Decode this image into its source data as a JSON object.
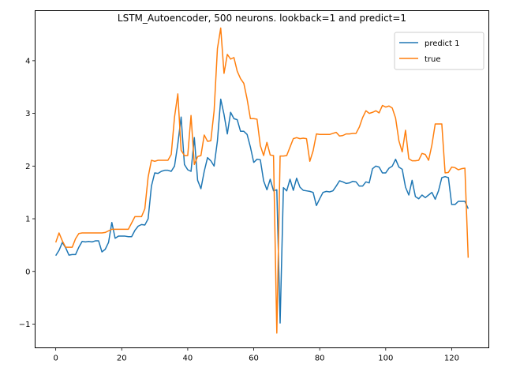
{
  "chart_data": {
    "type": "line",
    "title": "LSTM_Autoencoder, 500 neurons. lookback=1 and predict=1",
    "xlabel": "",
    "ylabel": "",
    "xlim": [
      -6.25,
      131.25
    ],
    "ylim": [
      -1.45,
      4.95
    ],
    "xticks": [
      0,
      20,
      40,
      60,
      80,
      100,
      120
    ],
    "yticks": [
      -1,
      0,
      1,
      2,
      3,
      4
    ],
    "xtick_labels": [
      "0",
      "20",
      "40",
      "60",
      "80",
      "100",
      "120"
    ],
    "ytick_labels": [
      "−1",
      "0",
      "1",
      "2",
      "3",
      "4"
    ],
    "grid": false,
    "legend_position": "top-right",
    "series": [
      {
        "name": "predict 1",
        "color": "#1f77b4",
        "x": [
          0,
          1,
          2,
          3,
          4,
          5,
          6,
          7,
          8,
          9,
          10,
          11,
          12,
          13,
          14,
          15,
          16,
          17,
          18,
          19,
          20,
          21,
          22,
          23,
          24,
          25,
          26,
          27,
          28,
          29,
          30,
          31,
          32,
          33,
          34,
          35,
          36,
          37,
          38,
          39,
          40,
          41,
          42,
          43,
          44,
          45,
          46,
          47,
          48,
          49,
          50,
          51,
          52,
          53,
          54,
          55,
          56,
          57,
          58,
          59,
          60,
          61,
          62,
          63,
          64,
          65,
          66,
          67,
          68,
          69,
          70,
          71,
          72,
          73,
          74,
          75,
          76,
          77,
          78,
          79,
          80,
          81,
          82,
          83,
          84,
          85,
          86,
          87,
          88,
          89,
          90,
          91,
          92,
          93,
          94,
          95,
          96,
          97,
          98,
          99,
          100,
          101,
          102,
          103,
          104,
          105,
          106,
          107,
          108,
          109,
          110,
          111,
          112,
          113,
          114,
          115,
          116,
          117,
          118,
          119,
          120,
          121,
          122,
          123,
          124,
          125
        ],
        "values": [
          0.3,
          0.4,
          0.55,
          0.45,
          0.31,
          0.32,
          0.32,
          0.46,
          0.57,
          0.56,
          0.57,
          0.56,
          0.58,
          0.58,
          0.37,
          0.42,
          0.55,
          0.93,
          0.63,
          0.67,
          0.67,
          0.67,
          0.66,
          0.66,
          0.78,
          0.86,
          0.89,
          0.88,
          1.0,
          1.62,
          1.87,
          1.86,
          1.9,
          1.92,
          1.92,
          1.9,
          2.0,
          2.42,
          2.93,
          2.03,
          1.93,
          1.9,
          2.54,
          1.73,
          1.57,
          1.9,
          2.16,
          2.1,
          2.0,
          2.48,
          3.27,
          2.98,
          2.61,
          3.02,
          2.9,
          2.88,
          2.66,
          2.66,
          2.6,
          2.36,
          2.07,
          2.13,
          2.12,
          1.72,
          1.55,
          1.75,
          1.53,
          1.55,
          -0.98,
          1.59,
          1.53,
          1.75,
          1.54,
          1.77,
          1.6,
          1.54,
          1.53,
          1.52,
          1.5,
          1.25,
          1.38,
          1.5,
          1.52,
          1.51,
          1.53,
          1.62,
          1.72,
          1.7,
          1.67,
          1.68,
          1.71,
          1.7,
          1.62,
          1.62,
          1.7,
          1.68,
          1.95,
          2.0,
          1.98,
          1.87,
          1.87,
          1.96,
          2.0,
          2.13,
          1.98,
          1.94,
          1.6,
          1.45,
          1.73,
          1.42,
          1.38,
          1.45,
          1.4,
          1.45,
          1.5,
          1.37,
          1.53,
          1.78,
          1.8,
          1.78,
          1.27,
          1.27,
          1.33,
          1.33,
          1.33,
          1.19
        ]
      },
      {
        "name": "true",
        "color": "#ff7f0e",
        "x": [
          0,
          1,
          2,
          3,
          4,
          5,
          6,
          7,
          8,
          9,
          10,
          11,
          12,
          13,
          14,
          15,
          16,
          17,
          18,
          19,
          20,
          21,
          22,
          23,
          24,
          25,
          26,
          27,
          28,
          29,
          30,
          31,
          32,
          33,
          34,
          35,
          36,
          37,
          38,
          39,
          40,
          41,
          42,
          43,
          44,
          45,
          46,
          47,
          48,
          49,
          50,
          51,
          52,
          53,
          54,
          55,
          56,
          57,
          58,
          59,
          60,
          61,
          62,
          63,
          64,
          65,
          66,
          67,
          68,
          69,
          70,
          71,
          72,
          73,
          74,
          75,
          76,
          77,
          78,
          79,
          80,
          81,
          82,
          83,
          84,
          85,
          86,
          87,
          88,
          89,
          90,
          91,
          92,
          93,
          94,
          95,
          96,
          97,
          98,
          99,
          100,
          101,
          102,
          103,
          104,
          105,
          106,
          107,
          108,
          109,
          110,
          111,
          112,
          113,
          114,
          115,
          116,
          117,
          118,
          119,
          120,
          121,
          122,
          123,
          124,
          125
        ],
        "values": [
          0.55,
          0.73,
          0.58,
          0.46,
          0.46,
          0.46,
          0.62,
          0.72,
          0.73,
          0.73,
          0.73,
          0.73,
          0.73,
          0.73,
          0.73,
          0.74,
          0.77,
          0.8,
          0.8,
          0.8,
          0.8,
          0.8,
          0.8,
          0.92,
          1.04,
          1.04,
          1.04,
          1.19,
          1.79,
          2.11,
          2.09,
          2.11,
          2.11,
          2.11,
          2.11,
          2.22,
          2.93,
          3.37,
          2.3,
          2.2,
          2.2,
          2.96,
          2.03,
          2.18,
          2.2,
          2.59,
          2.47,
          2.48,
          3.05,
          4.23,
          4.62,
          3.76,
          4.12,
          4.03,
          4.06,
          3.8,
          3.66,
          3.57,
          3.27,
          2.9,
          2.9,
          2.89,
          2.39,
          2.2,
          2.45,
          2.21,
          2.2,
          -1.17,
          2.19,
          2.19,
          2.2,
          2.36,
          2.52,
          2.54,
          2.52,
          2.53,
          2.52,
          2.09,
          2.29,
          2.61,
          2.6,
          2.6,
          2.6,
          2.6,
          2.62,
          2.64,
          2.57,
          2.58,
          2.61,
          2.61,
          2.62,
          2.62,
          2.74,
          2.92,
          3.05,
          3.0,
          3.02,
          3.05,
          3.01,
          3.15,
          3.12,
          3.14,
          3.1,
          2.91,
          2.48,
          2.27,
          2.68,
          2.14,
          2.1,
          2.1,
          2.11,
          2.24,
          2.22,
          2.11,
          2.4,
          2.8,
          2.8,
          2.8,
          1.87,
          1.88,
          1.98,
          1.97,
          1.93,
          1.95,
          1.96,
          0.26
        ]
      }
    ]
  }
}
